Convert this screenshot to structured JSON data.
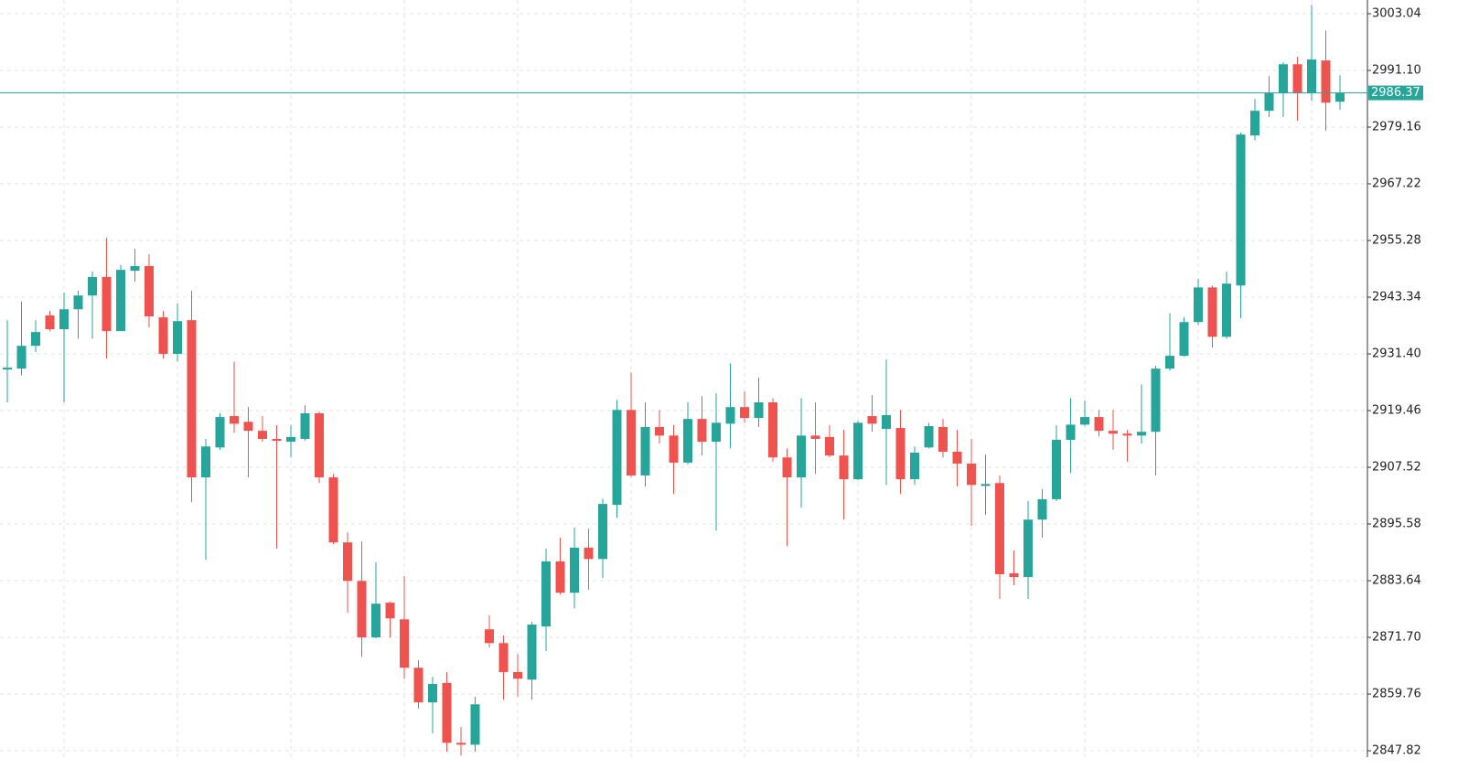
{
  "chart_data": {
    "type": "candlestick",
    "up_color": "#26a69a",
    "down_color": "#ef5350",
    "grid": true,
    "ylim": [
      2846.48,
      3005.93
    ],
    "yticks": [
      3003.04,
      {
        "value": 2991.1,
        "label": "2991.10"
      },
      2979.16,
      2967.22,
      2955.28,
      2943.34,
      {
        "value": 2931.4,
        "label": "2931.40"
      },
      2919.46,
      2907.52,
      2895.58,
      2883.64,
      {
        "value": 2871.7,
        "label": "2871.70"
      },
      2859.76,
      2847.82
    ],
    "price_line": 2986.37,
    "open": [
      2928.1,
      2928.3,
      2933.1,
      2939.5,
      2936.6,
      2940.8,
      2943.7,
      2947.6,
      2936.2,
      2948.9,
      2949.9,
      2939.1,
      2931.4,
      2938.5,
      2905.4,
      2911.7,
      2918.3,
      2917.1,
      2915.2,
      2913.5,
      2912.9,
      2913.5,
      2918.9,
      2905.4,
      2891.7,
      2883.6,
      2871.7,
      2879.0,
      2875.5,
      2865.3,
      2858.0,
      2862.1,
      2849.5,
      2849.1,
      2873.4,
      2870.5,
      2864.4,
      2862.8,
      2874.0,
      2887.7,
      2881.1,
      2890.6,
      2888.2,
      2899.6,
      2919.6,
      2905.8,
      2916.0,
      2914.2,
      2908.5,
      2917.7,
      2912.9,
      2916.7,
      2920.2,
      2917.9,
      2921.2,
      2909.6,
      2905.4,
      2914.2,
      2913.9,
      2910.0,
      2905.0,
      2918.3,
      2915.6,
      2915.8,
      2905.0,
      2911.7,
      2916.0,
      2910.8,
      2908.3,
      2903.6,
      2904.2,
      2885.2,
      2884.4,
      2896.5,
      2900.8,
      2913.3,
      2916.5,
      2918.1,
      2915.2,
      2914.6,
      2914.2,
      2915.0,
      2928.3,
      2931.0,
      2938.1,
      2945.4,
      2935.0,
      2945.8,
      2977.4,
      2982.6,
      2986.3,
      2992.4,
      2986.3,
      2993.2,
      2984.5
    ],
    "high": [
      2938.5,
      2942.4,
      2938.5,
      2940.4,
      2944.3,
      2944.7,
      2948.7,
      2955.8,
      2950.1,
      2953.5,
      2952.4,
      2940.4,
      2942.0,
      2944.7,
      2913.5,
      2918.9,
      2929.8,
      2920.2,
      2918.3,
      2916.4,
      2916.4,
      2920.6,
      2919.3,
      2906.1,
      2893.8,
      2891.9,
      2887.5,
      2879.2,
      2884.6,
      2866.9,
      2863.4,
      2864.4,
      2852.8,
      2859.2,
      2876.3,
      2872.1,
      2868.2,
      2875.0,
      2890.4,
      2892.7,
      2894.8,
      2894.6,
      2900.9,
      2921.7,
      2927.5,
      2921.2,
      2919.6,
      2916.4,
      2921.2,
      2922.5,
      2923.1,
      2929.4,
      2923.5,
      2926.4,
      2922.1,
      2911.5,
      2922.1,
      2921.2,
      2916.4,
      2915.4,
      2917.3,
      2922.7,
      2930.2,
      2919.6,
      2911.9,
      2916.9,
      2917.7,
      2915.4,
      2913.5,
      2910.2,
      2905.8,
      2890.0,
      2900.4,
      2902.9,
      2916.4,
      2922.1,
      2921.6,
      2919.6,
      2919.6,
      2915.4,
      2925.0,
      2928.9,
      2940.0,
      2939.1,
      2947.2,
      2945.8,
      2948.7,
      2978.0,
      2985.1,
      2989.9,
      2992.8,
      2994.0,
      3004.9,
      2999.5,
      2990.1
    ],
    "low": [
      2921.2,
      2926.9,
      2931.8,
      2936.2,
      2921.2,
      2934.6,
      2934.6,
      2930.4,
      2936.2,
      2946.6,
      2937.0,
      2930.4,
      2929.8,
      2900.2,
      2888.0,
      2911.2,
      2914.8,
      2905.4,
      2912.9,
      2890.4,
      2909.6,
      2913.1,
      2904.2,
      2891.3,
      2876.9,
      2867.6,
      2871.5,
      2871.7,
      2863.0,
      2856.7,
      2851.5,
      2847.6,
      2846.8,
      2847.6,
      2869.6,
      2858.6,
      2859.2,
      2858.6,
      2868.8,
      2880.7,
      2877.8,
      2881.7,
      2884.2,
      2896.9,
      2905.4,
      2903.5,
      2912.5,
      2901.9,
      2908.1,
      2910.0,
      2894.2,
      2911.5,
      2916.9,
      2916.0,
      2908.7,
      2890.9,
      2899.0,
      2906.1,
      2909.6,
      2896.5,
      2904.8,
      2915.0,
      2903.8,
      2901.9,
      2903.8,
      2911.5,
      2909.6,
      2903.5,
      2895.2,
      2897.5,
      2879.8,
      2882.7,
      2879.8,
      2892.7,
      2900.4,
      2906.3,
      2916.2,
      2914.0,
      2911.2,
      2908.7,
      2912.5,
      2905.8,
      2927.9,
      2930.8,
      2937.5,
      2932.7,
      2934.6,
      2938.9,
      2976.4,
      2981.3,
      2981.3,
      2980.5,
      2984.7,
      2978.4,
      2982.8
    ],
    "close": [
      2928.5,
      2933.1,
      2936.0,
      2936.6,
      2940.8,
      2943.7,
      2947.6,
      2936.2,
      2949.1,
      2949.9,
      2939.3,
      2931.4,
      2938.3,
      2905.4,
      2911.9,
      2918.1,
      2916.7,
      2915.2,
      2913.5,
      2913.1,
      2913.9,
      2918.9,
      2905.4,
      2891.7,
      2883.6,
      2871.7,
      2878.8,
      2875.7,
      2865.3,
      2858.0,
      2861.9,
      2849.5,
      2849.1,
      2857.6,
      2870.5,
      2864.4,
      2863.0,
      2874.4,
      2887.7,
      2881.1,
      2890.6,
      2888.2,
      2899.8,
      2919.6,
      2905.8,
      2916.0,
      2914.2,
      2908.5,
      2917.7,
      2912.9,
      2916.9,
      2920.2,
      2917.9,
      2921.2,
      2909.6,
      2905.4,
      2914.2,
      2913.5,
      2910.0,
      2905.0,
      2916.9,
      2916.7,
      2918.5,
      2905.0,
      2910.6,
      2916.2,
      2910.8,
      2908.3,
      2903.8,
      2904.0,
      2885.0,
      2884.4,
      2896.5,
      2900.8,
      2913.3,
      2916.5,
      2918.1,
      2915.2,
      2914.6,
      2914.2,
      2915.0,
      2928.3,
      2931.0,
      2938.1,
      2945.4,
      2935.0,
      2946.2,
      2977.6,
      2982.6,
      2986.3,
      2992.4,
      2986.3,
      2993.4,
      2984.3,
      2986.37
    ]
  }
}
